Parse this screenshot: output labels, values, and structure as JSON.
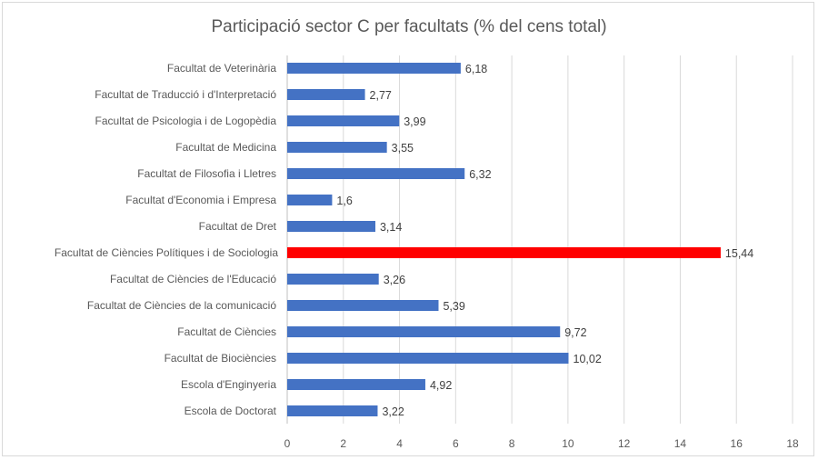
{
  "chart_data": {
    "type": "bar",
    "orientation": "horizontal",
    "title": "Participació sector C per facultats (% del cens total)",
    "categories": [
      "Facultat de Veterinària",
      "Facultat de Traducció i d'Interpretació",
      "Facultat de Psicologia i de Logopèdia",
      "Facultat de Medicina",
      "Facultat de Filosofia i Lletres",
      "Facultat d'Economia i Empresa",
      "Facultat de Dret",
      "Facultat de Ciències Polítiques i de Sociologia",
      "Facultat de Ciències de l'Educació",
      "Facultat de Ciències de la comunicació",
      "Facultat de Ciències",
      "Facultat de Biociències",
      "Escola d'Enginyeria",
      "Escola de Doctorat"
    ],
    "values": [
      6.18,
      2.77,
      3.99,
      3.55,
      6.32,
      1.6,
      3.14,
      15.44,
      3.26,
      5.39,
      9.72,
      10.02,
      4.92,
      3.22
    ],
    "data_labels": [
      "6,18",
      "2,77",
      "3,99",
      "3,55",
      "6,32",
      "1,6",
      "3,14",
      "15,44",
      "3,26",
      "5,39",
      "9,72",
      "10,02",
      "4,92",
      "3,22"
    ],
    "highlight_index": 7,
    "xlim": [
      0,
      18
    ],
    "xticks": [
      "0",
      "2",
      "4",
      "6",
      "8",
      "10",
      "12",
      "14",
      "16",
      "18"
    ],
    "grid": "vertical",
    "colors": {
      "bar": "#4472c4",
      "highlight": "#ff0000",
      "grid": "#d9d9d9"
    }
  }
}
